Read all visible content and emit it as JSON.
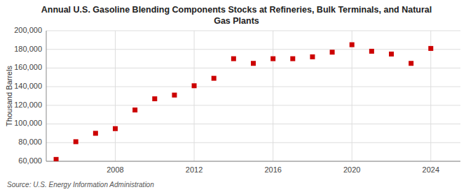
{
  "chart_data": {
    "type": "scatter",
    "title": "Annual U.S. Gasoline Blending Components Stocks at Refineries, Bulk Terminals, and Natural\nGas Plants",
    "y_label": "Thousand Barrels",
    "source": "Source: U.S. Energy Information Administration",
    "x": [
      2005,
      2006,
      2007,
      2008,
      2009,
      2010,
      2011,
      2012,
      2013,
      2014,
      2015,
      2016,
      2017,
      2018,
      2019,
      2020,
      2021,
      2022,
      2023,
      2024
    ],
    "values": [
      62000,
      81000,
      90000,
      95000,
      115000,
      127000,
      131000,
      141000,
      149000,
      170000,
      165000,
      170000,
      170000,
      172000,
      177000,
      185000,
      178000,
      175000,
      165000,
      181000
    ],
    "color": "#cc0000",
    "marker": "square",
    "xlim": [
      2004.5,
      2025.5
    ],
    "xticks": [
      2008,
      2012,
      2016,
      2020,
      2024
    ],
    "ylim": [
      60000,
      200000
    ],
    "yticks": [
      {
        "value": 60000,
        "label": "60,000"
      },
      {
        "value": 80000,
        "label": "80,000"
      },
      {
        "value": 100000,
        "label": "100,000"
      },
      {
        "value": 120000,
        "label": "120,000"
      },
      {
        "value": 140000,
        "label": "140,000"
      },
      {
        "value": 160000,
        "label": "160,000"
      },
      {
        "value": 180000,
        "label": "180,000"
      },
      {
        "value": 200000,
        "label": "200,000"
      }
    ],
    "grid": true
  }
}
